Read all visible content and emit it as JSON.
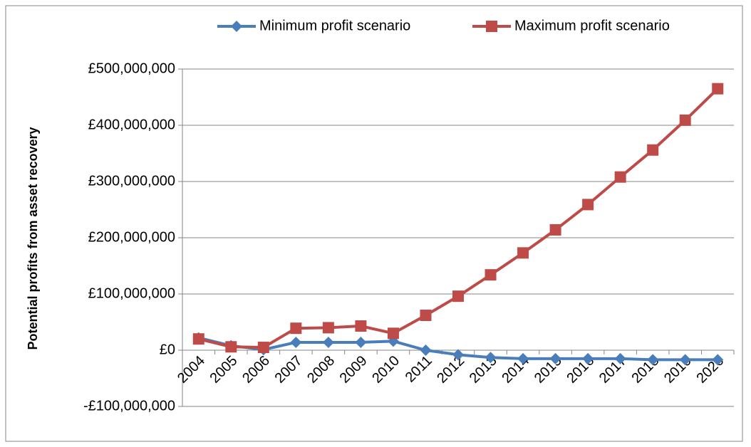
{
  "chart_data": {
    "type": "line",
    "y_axis_label": "Potential profits from asset  recovery",
    "categories": [
      "2004",
      "2005",
      "2006",
      "2007",
      "2008",
      "2009",
      "2010",
      "2011",
      "2012",
      "2013",
      "2014",
      "2015",
      "2016",
      "2017",
      "2018",
      "2019",
      "2020"
    ],
    "series": [
      {
        "name": "Minimum profit scenario",
        "color": "#4a7ebb",
        "marker": "diamond",
        "values": [
          22000000,
          8000000,
          1000000,
          14000000,
          14000000,
          14000000,
          16000000,
          0,
          -8000000,
          -13000000,
          -15000000,
          -15000000,
          -15000000,
          -15000000,
          -17000000,
          -17000000,
          -17000000
        ]
      },
      {
        "name": "Maximum profit scenario",
        "color": "#be4b48",
        "marker": "square",
        "values": [
          20000000,
          6000000,
          5000000,
          39000000,
          40000000,
          43000000,
          30000000,
          62000000,
          96000000,
          134000000,
          173000000,
          214000000,
          259000000,
          308000000,
          356000000,
          409000000,
          465000000
        ]
      }
    ],
    "ylim": [
      -100000000,
      500000000
    ],
    "yticks": [
      {
        "value": -100000000,
        "label": "-£100,000,000"
      },
      {
        "value": 0,
        "label": "£0"
      },
      {
        "value": 100000000,
        "label": "£100,000,000"
      },
      {
        "value": 200000000,
        "label": "£200,000,000"
      },
      {
        "value": 300000000,
        "label": "£300,000,000"
      },
      {
        "value": 400000000,
        "label": "£400,000,000"
      },
      {
        "value": 500000000,
        "label": "£500,000,000"
      }
    ],
    "grid": true,
    "legend": "top"
  }
}
